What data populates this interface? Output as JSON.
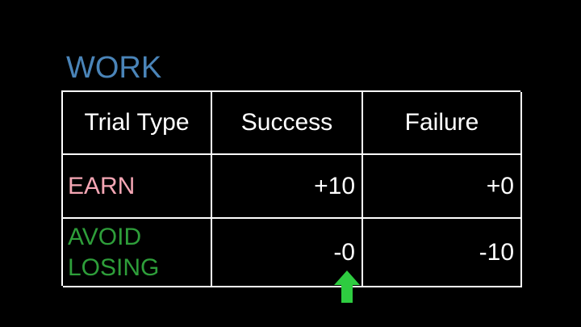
{
  "slide": {
    "title": "WORK"
  },
  "table": {
    "headers": [
      "Trial Type",
      "Success",
      "Failure"
    ],
    "rows": [
      {
        "type": "EARN",
        "success": "+10",
        "failure": "+0"
      },
      {
        "type": "AVOID LOSING",
        "success": "-0",
        "failure": "-10"
      }
    ]
  },
  "colors": {
    "background": "#000000",
    "title": "#4a84b8",
    "earn": "#f4a6b4",
    "avoid": "#2e9e3a",
    "arrow": "#2ecc40",
    "grid": "#ffffff"
  },
  "icons": {
    "pointer": "up-arrow-icon"
  }
}
